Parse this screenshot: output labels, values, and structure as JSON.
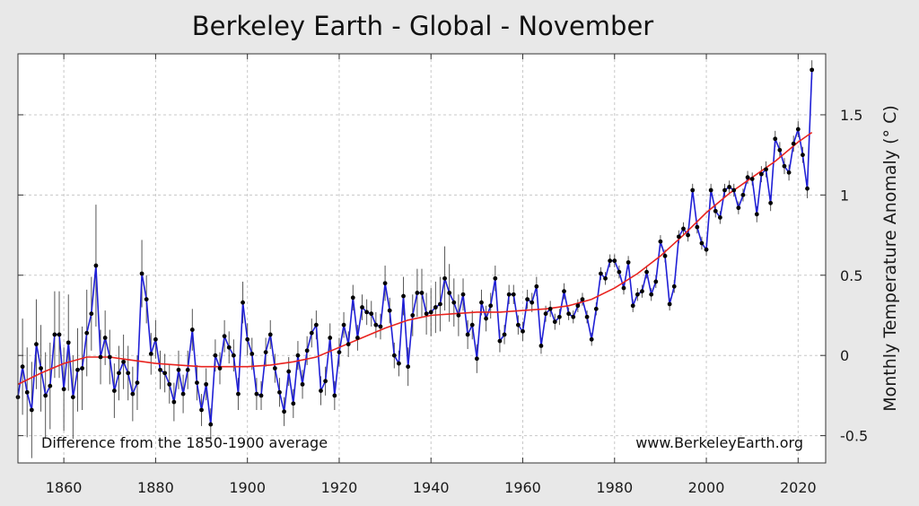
{
  "chart_data": {
    "type": "line",
    "title": "Berkeley Earth - Global - November",
    "ylabel": "Monthly Temperature Anomaly (° C)",
    "xlabel": "",
    "xlim": [
      1850,
      2026
    ],
    "ylim": [
      -0.67,
      1.88
    ],
    "xticks": [
      1860,
      1880,
      1900,
      1920,
      1940,
      1960,
      1980,
      2000,
      2020
    ],
    "xtick_labels": [
      "1860",
      "1880",
      "1900",
      "1920",
      "1940",
      "1960",
      "1980",
      "2000",
      "2020"
    ],
    "yticks": [
      -0.5,
      0,
      0.5,
      1,
      1.5
    ],
    "ytick_labels": [
      "-0.5",
      "0",
      "0.5",
      "1",
      "1.5"
    ],
    "grid": true,
    "colors": {
      "series": "#1f1fd6",
      "trend": "#e8231f",
      "points": "#000000",
      "error_bars": "#555555"
    },
    "annotations": [
      "Difference from the 1850-1900 average",
      "www.BerkeleyEarth.org"
    ],
    "series": [
      {
        "type": "line-with-markers",
        "x": [
          1850,
          1851,
          1852,
          1853,
          1854,
          1855,
          1856,
          1857,
          1858,
          1859,
          1860,
          1861,
          1862,
          1863,
          1864,
          1865,
          1866,
          1867,
          1868,
          1869,
          1870,
          1871,
          1872,
          1873,
          1874,
          1875,
          1876,
          1877,
          1878,
          1879,
          1880,
          1881,
          1882,
          1883,
          1884,
          1885,
          1886,
          1887,
          1888,
          1889,
          1890,
          1891,
          1892,
          1893,
          1894,
          1895,
          1896,
          1897,
          1898,
          1899,
          1900,
          1901,
          1902,
          1903,
          1904,
          1905,
          1906,
          1907,
          1908,
          1909,
          1910,
          1911,
          1912,
          1913,
          1914,
          1915,
          1916,
          1917,
          1918,
          1919,
          1920,
          1921,
          1922,
          1923,
          1924,
          1925,
          1926,
          1927,
          1928,
          1929,
          1930,
          1931,
          1932,
          1933,
          1934,
          1935,
          1936,
          1937,
          1938,
          1939,
          1940,
          1941,
          1942,
          1943,
          1944,
          1945,
          1946,
          1947,
          1948,
          1949,
          1950,
          1951,
          1952,
          1953,
          1954,
          1955,
          1956,
          1957,
          1958,
          1959,
          1960,
          1961,
          1962,
          1963,
          1964,
          1965,
          1966,
          1967,
          1968,
          1969,
          1970,
          1971,
          1972,
          1973,
          1974,
          1975,
          1976,
          1977,
          1978,
          1979,
          1980,
          1981,
          1982,
          1983,
          1984,
          1985,
          1986,
          1987,
          1988,
          1989,
          1990,
          1991,
          1992,
          1993,
          1994,
          1995,
          1996,
          1997,
          1998,
          1999,
          2000,
          2001,
          2002,
          2003,
          2004,
          2005,
          2006,
          2007,
          2008,
          2009,
          2010,
          2011,
          2012,
          2013,
          2014,
          2015,
          2016,
          2017,
          2018,
          2019,
          2020,
          2021,
          2022,
          2023
        ],
        "y": [
          -0.26,
          -0.07,
          -0.23,
          -0.34,
          0.07,
          -0.08,
          -0.25,
          -0.19,
          0.13,
          0.13,
          -0.21,
          0.08,
          -0.26,
          -0.09,
          -0.08,
          0.14,
          0.26,
          0.56,
          -0.01,
          0.11,
          -0.01,
          -0.22,
          -0.11,
          -0.04,
          -0.11,
          -0.24,
          -0.17,
          0.51,
          0.35,
          0.01,
          0.1,
          -0.09,
          -0.11,
          -0.18,
          -0.29,
          -0.09,
          -0.24,
          -0.09,
          0.16,
          -0.17,
          -0.34,
          -0.18,
          -0.43,
          0.0,
          -0.08,
          0.12,
          0.05,
          0.0,
          -0.24,
          0.33,
          0.1,
          0.01,
          -0.24,
          -0.25,
          0.02,
          0.13,
          -0.08,
          -0.23,
          -0.35,
          -0.1,
          -0.3,
          0.0,
          -0.18,
          0.03,
          0.14,
          0.19,
          -0.22,
          -0.16,
          0.11,
          -0.25,
          0.02,
          0.19,
          0.07,
          0.36,
          0.11,
          0.3,
          0.27,
          0.26,
          0.19,
          0.18,
          0.45,
          0.28,
          0.0,
          -0.05,
          0.37,
          -0.07,
          0.25,
          0.39,
          0.39,
          0.26,
          0.27,
          0.3,
          0.32,
          0.48,
          0.39,
          0.33,
          0.25,
          0.38,
          0.13,
          0.19,
          -0.02,
          0.33,
          0.23,
          0.31,
          0.48,
          0.09,
          0.13,
          0.38,
          0.38,
          0.19,
          0.15,
          0.35,
          0.33,
          0.43,
          0.06,
          0.26,
          0.29,
          0.21,
          0.24,
          0.4,
          0.26,
          0.24,
          0.31,
          0.35,
          0.24,
          0.1,
          0.29,
          0.51,
          0.48,
          0.59,
          0.59,
          0.52,
          0.42,
          0.58,
          0.31,
          0.38,
          0.4,
          0.52,
          0.38,
          0.46,
          0.71,
          0.62,
          0.32,
          0.43,
          0.74,
          0.79,
          0.75,
          1.03,
          0.8,
          0.7,
          0.66,
          1.03,
          0.9,
          0.86,
          1.03,
          1.05,
          1.03,
          0.92,
          1.0,
          1.11,
          1.1,
          0.88,
          1.13,
          1.16,
          0.95,
          1.35,
          1.28,
          1.18,
          1.14,
          1.32,
          1.41,
          1.25,
          1.04,
          1.78
        ],
        "error": [
          0.5,
          0.3,
          0.28,
          0.3,
          0.28,
          0.27,
          0.27,
          0.27,
          0.27,
          0.27,
          0.26,
          0.3,
          0.26,
          0.26,
          0.26,
          0.27,
          0.23,
          0.38,
          0.17,
          0.17,
          0.17,
          0.17,
          0.17,
          0.17,
          0.17,
          0.17,
          0.17,
          0.21,
          0.15,
          0.13,
          0.12,
          0.12,
          0.12,
          0.12,
          0.12,
          0.12,
          0.12,
          0.12,
          0.13,
          0.11,
          0.1,
          0.1,
          0.1,
          0.1,
          0.1,
          0.1,
          0.1,
          0.1,
          0.1,
          0.13,
          0.1,
          0.1,
          0.1,
          0.09,
          0.09,
          0.09,
          0.09,
          0.09,
          0.09,
          0.09,
          0.09,
          0.09,
          0.09,
          0.09,
          0.09,
          0.09,
          0.09,
          0.09,
          0.09,
          0.09,
          0.09,
          0.08,
          0.08,
          0.08,
          0.08,
          0.08,
          0.08,
          0.08,
          0.08,
          0.08,
          0.11,
          0.08,
          0.08,
          0.08,
          0.12,
          0.12,
          0.13,
          0.15,
          0.15,
          0.13,
          0.15,
          0.16,
          0.17,
          0.2,
          0.18,
          0.15,
          0.13,
          0.1,
          0.09,
          0.09,
          0.09,
          0.08,
          0.08,
          0.08,
          0.08,
          0.07,
          0.06,
          0.06,
          0.06,
          0.06,
          0.06,
          0.06,
          0.06,
          0.06,
          0.05,
          0.05,
          0.05,
          0.05,
          0.05,
          0.05,
          0.04,
          0.04,
          0.04,
          0.04,
          0.04,
          0.04,
          0.04,
          0.04,
          0.04,
          0.04,
          0.04,
          0.04,
          0.04,
          0.04,
          0.04,
          0.04,
          0.04,
          0.04,
          0.04,
          0.04,
          0.04,
          0.04,
          0.04,
          0.04,
          0.04,
          0.04,
          0.04,
          0.04,
          0.04,
          0.04,
          0.04,
          0.04,
          0.04,
          0.04,
          0.04,
          0.04,
          0.04,
          0.04,
          0.04,
          0.04,
          0.04,
          0.05,
          0.05,
          0.05,
          0.05,
          0.05,
          0.05,
          0.05,
          0.05,
          0.05,
          0.05,
          0.05,
          0.06,
          0.06
        ]
      },
      {
        "type": "smoothed-trend",
        "x": [
          1850,
          1855,
          1860,
          1865,
          1870,
          1875,
          1880,
          1885,
          1890,
          1895,
          1900,
          1905,
          1910,
          1915,
          1920,
          1925,
          1930,
          1935,
          1940,
          1945,
          1950,
          1955,
          1960,
          1965,
          1970,
          1975,
          1980,
          1985,
          1990,
          1995,
          2000,
          2005,
          2010,
          2015,
          2020,
          2023
        ],
        "y": [
          -0.18,
          -0.11,
          -0.05,
          -0.01,
          -0.01,
          -0.03,
          -0.05,
          -0.06,
          -0.07,
          -0.07,
          -0.07,
          -0.06,
          -0.04,
          -0.01,
          0.05,
          0.11,
          0.17,
          0.22,
          0.25,
          0.26,
          0.27,
          0.27,
          0.28,
          0.29,
          0.31,
          0.35,
          0.42,
          0.51,
          0.62,
          0.75,
          0.89,
          1.01,
          1.11,
          1.21,
          1.33,
          1.39
        ]
      }
    ]
  }
}
